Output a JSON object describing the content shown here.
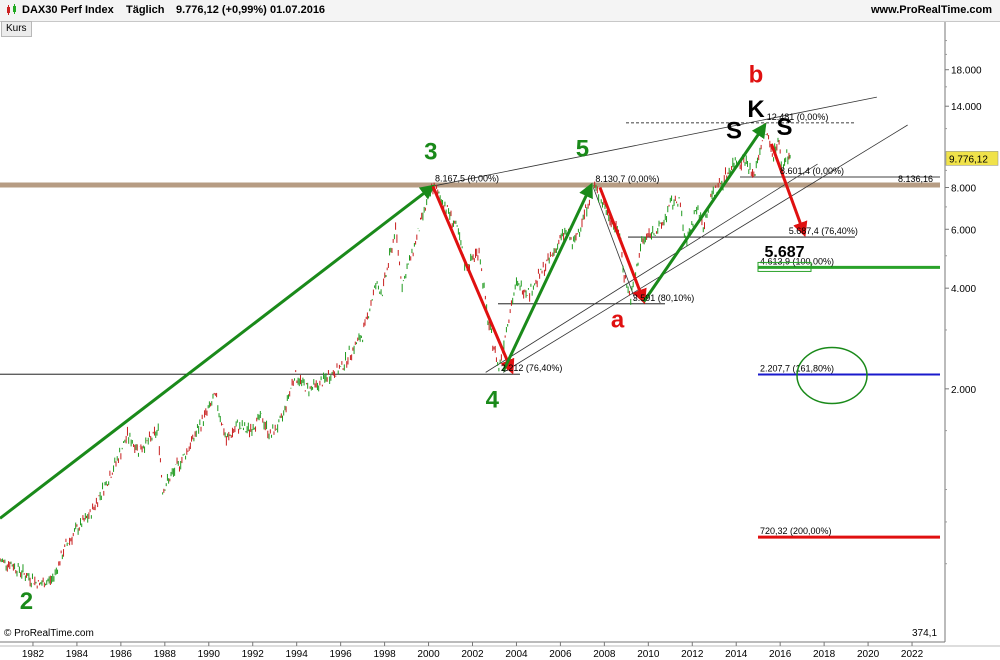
{
  "header": {
    "instrument": "DAX30 Perf Index",
    "period": "Täglich",
    "last": "9.776,12 (+0,99%)",
    "date": "01.07.2016",
    "site": "www.ProRealTime.com"
  },
  "tab_label": "Kurs",
  "copyright": "© ProRealTime.com",
  "bottom_right_value": "374,1",
  "chart_data": {
    "type": "line",
    "title": "DAX30 Perf Index",
    "yscale": "log",
    "ylim": [
      350,
      25000
    ],
    "xlim": [
      1980.5,
      2023.5
    ],
    "x_ticks": [
      "1982",
      "1984",
      "1986",
      "1988",
      "1990",
      "1992",
      "1994",
      "1996",
      "1998",
      "2000",
      "2002",
      "2004",
      "2006",
      "2008",
      "2010",
      "2012",
      "2014",
      "2016",
      "2018",
      "2020",
      "2022"
    ],
    "y_ticks": [
      {
        "v": 2000,
        "label": "2.000"
      },
      {
        "v": 4000,
        "label": "4.000"
      },
      {
        "v": 6000,
        "label": "6.000"
      },
      {
        "v": 8000,
        "label": "8.000"
      },
      {
        "v": 14000,
        "label": "14.000"
      },
      {
        "v": 18000,
        "label": "18.000"
      }
    ],
    "current_price": {
      "value": 9776.12,
      "label": "9.776,12"
    },
    "price_series": [
      [
        1980.5,
        612
      ],
      [
        1981,
        600
      ],
      [
        1981.6,
        560
      ],
      [
        1982.3,
        520
      ],
      [
        1982.9,
        540
      ],
      [
        1983.5,
        680
      ],
      [
        1984,
        760
      ],
      [
        1984.6,
        840
      ],
      [
        1985,
        950
      ],
      [
        1985.5,
        1100
      ],
      [
        1986,
        1300
      ],
      [
        1986.3,
        1450
      ],
      [
        1986.8,
        1320
      ],
      [
        1987.3,
        1400
      ],
      [
        1987.7,
        1500
      ],
      [
        1987.9,
        1000
      ],
      [
        1988.5,
        1150
      ],
      [
        1989,
        1300
      ],
      [
        1989.7,
        1600
      ],
      [
        1990.3,
        1900
      ],
      [
        1990.8,
        1400
      ],
      [
        1991.3,
        1550
      ],
      [
        1991.8,
        1500
      ],
      [
        1992.4,
        1650
      ],
      [
        1992.8,
        1450
      ],
      [
        1993.3,
        1600
      ],
      [
        1993.9,
        2200
      ],
      [
        1994.5,
        2000
      ],
      [
        1995,
        2050
      ],
      [
        1995.5,
        2200
      ],
      [
        1996,
        2300
      ],
      [
        1996.5,
        2600
      ],
      [
        1997,
        2900
      ],
      [
        1997.6,
        4100
      ],
      [
        1997.9,
        3900
      ],
      [
        1998.5,
        6000
      ],
      [
        1998.8,
        4100
      ],
      [
        1999.3,
        5200
      ],
      [
        1999.8,
        6800
      ],
      [
        2000.2,
        8065
      ],
      [
        2000.8,
        7000
      ],
      [
        2001.3,
        6000
      ],
      [
        2001.7,
        4600
      ],
      [
        2002.3,
        5200
      ],
      [
        2002.7,
        3200
      ],
      [
        2003.2,
        2300
      ],
      [
        2003.6,
        3200
      ],
      [
        2004,
        4100
      ],
      [
        2004.6,
        3900
      ],
      [
        2005,
        4300
      ],
      [
        2005.6,
        5000
      ],
      [
        2006.2,
        5900
      ],
      [
        2006.6,
        5400
      ],
      [
        2007.2,
        7000
      ],
      [
        2007.5,
        8100
      ],
      [
        2007.8,
        7500
      ],
      [
        2008.2,
        6600
      ],
      [
        2008.7,
        5800
      ],
      [
        2008.9,
        4400
      ],
      [
        2009.2,
        3700
      ],
      [
        2009.7,
        5500
      ],
      [
        2010.2,
        5900
      ],
      [
        2010.6,
        6100
      ],
      [
        2011,
        7100
      ],
      [
        2011.4,
        7400
      ],
      [
        2011.7,
        5400
      ],
      [
        2012.2,
        7000
      ],
      [
        2012.5,
        6100
      ],
      [
        2012.9,
        7600
      ],
      [
        2013.4,
        8400
      ],
      [
        2013.9,
        9500
      ],
      [
        2014.4,
        9700
      ],
      [
        2014.8,
        8600
      ],
      [
        2015.3,
        12000
      ],
      [
        2015.7,
        10000
      ],
      [
        2015.9,
        11200
      ],
      [
        2016.1,
        9000
      ],
      [
        2016.3,
        10100
      ],
      [
        2016.5,
        9776
      ]
    ],
    "horizontal_levels": [
      {
        "value": 8136.16,
        "label": "8.136,16",
        "color": "#7a4a1e"
      },
      {
        "value": 2207.7,
        "label": "2.207,7 (161,80%)",
        "color": "#1a1acc"
      },
      {
        "value": 4613.9,
        "label": "4.613,9 (100,00%)",
        "color": "#2aa22a"
      },
      {
        "value": 720.32,
        "label": "720,32 (200,00%)",
        "color": "#e01010"
      }
    ],
    "fib_labels": [
      {
        "x": 2000.2,
        "y": 8167.5,
        "text": "8.167,5 (0,00%)"
      },
      {
        "x": 2007.5,
        "y": 8130.7,
        "text": "8.130,7 (0,00%)"
      },
      {
        "x": 2003.2,
        "y": 2212,
        "text": "2.212 (76,40%)"
      },
      {
        "x": 2009.2,
        "y": 3591,
        "text": "3.591 (80,10%)"
      },
      {
        "x": 2015.3,
        "y": 12481,
        "text": "12.481 (0,00%)"
      },
      {
        "x": 2015.9,
        "y": 8601.4,
        "text": "8.601,4 (0,00%)"
      },
      {
        "x": 2016.3,
        "y": 5687.4,
        "text": "5.687,4 (76,40%)"
      }
    ],
    "wave_labels": [
      {
        "text": "2",
        "x": 1981.7,
        "y": 440,
        "color": "#1a8a1a"
      },
      {
        "text": "3",
        "x": 2000.1,
        "y": 9700,
        "color": "#1a8a1a"
      },
      {
        "text": "4",
        "x": 2002.9,
        "y": 1760,
        "color": "#1a8a1a"
      },
      {
        "text": "5",
        "x": 2007.0,
        "y": 9900,
        "color": "#1a8a1a"
      },
      {
        "text": "a",
        "x": 2008.6,
        "y": 3050,
        "color": "#e01010"
      },
      {
        "text": "b",
        "x": 2014.9,
        "y": 16500,
        "color": "#e01010"
      },
      {
        "text": "K",
        "x": 2014.9,
        "y": 13000,
        "color": "#000000"
      },
      {
        "text": "S",
        "x": 2013.9,
        "y": 11200,
        "color": "#000000"
      },
      {
        "text": "S",
        "x": 2016.2,
        "y": 11500,
        "color": "#000000"
      }
    ],
    "target_label": {
      "text": "5.687",
      "x": 2016.2,
      "y": 4950
    },
    "wave_arrows": [
      {
        "x1": 1980.5,
        "y1": 820,
        "x2": 2000.2,
        "y2": 8065,
        "color": "#1a8a1a"
      },
      {
        "x1": 2000.2,
        "y1": 8065,
        "x2": 2003.8,
        "y2": 2250,
        "color": "#e01010"
      },
      {
        "x1": 2003.4,
        "y1": 2260,
        "x2": 2007.4,
        "y2": 8130,
        "color": "#1a8a1a"
      },
      {
        "x1": 2007.8,
        "y1": 8000,
        "x2": 2009.8,
        "y2": 3650,
        "color": "#e01010"
      },
      {
        "x1": 2009.8,
        "y1": 3650,
        "x2": 2015.3,
        "y2": 12300,
        "color": "#1a8a1a"
      },
      {
        "x1": 2015.6,
        "y1": 10800,
        "x2": 2017.1,
        "y2": 5800,
        "color": "#e01010"
      }
    ],
    "channel_lines": [
      {
        "x1": 2000.3,
        "y1": 8100,
        "x2": 2020.4,
        "y2": 14900
      },
      {
        "x1": 2003.4,
        "y1": 2240,
        "x2": 2021.8,
        "y2": 12300
      },
      {
        "x1": 2002.6,
        "y1": 2240,
        "x2": 2017.7,
        "y2": 9400
      }
    ]
  }
}
